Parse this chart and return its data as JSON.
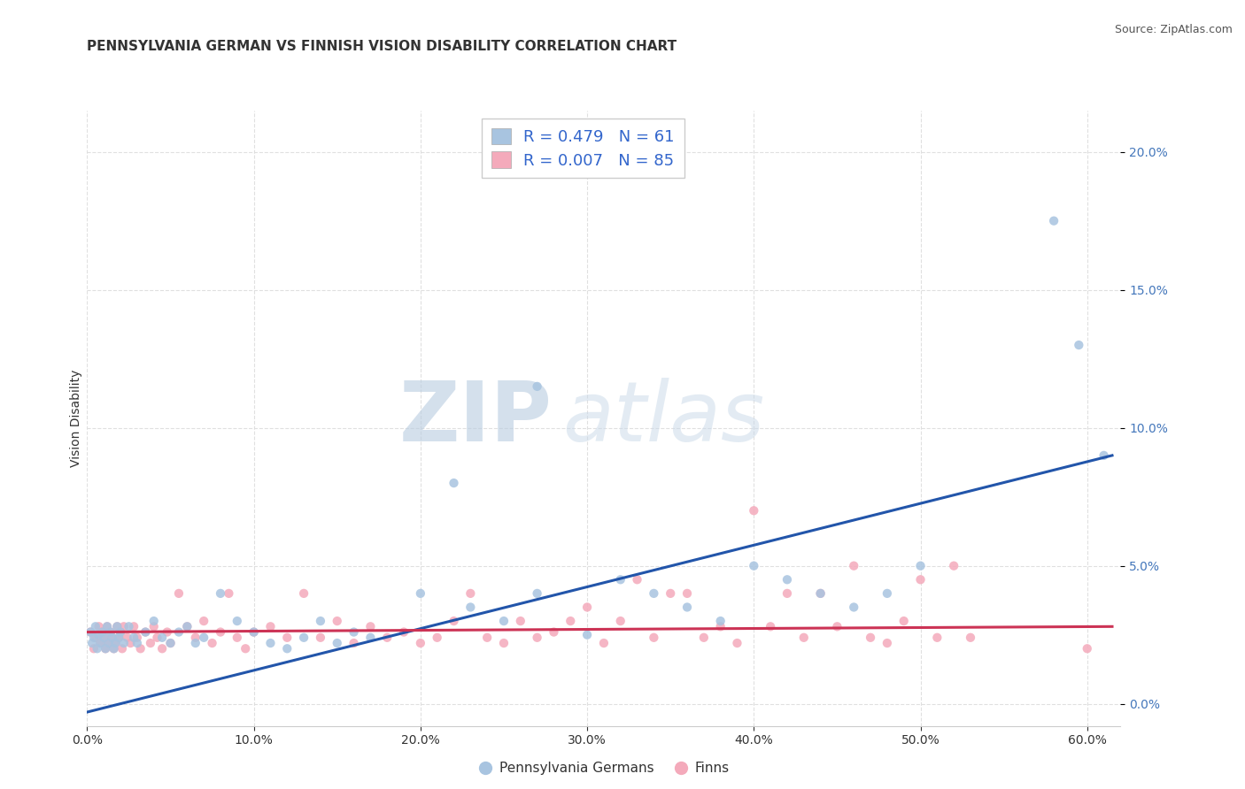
{
  "title": "PENNSYLVANIA GERMAN VS FINNISH VISION DISABILITY CORRELATION CHART",
  "source": "Source: ZipAtlas.com",
  "ylabel": "Vision Disability",
  "xlim": [
    0.0,
    0.62
  ],
  "ylim": [
    -0.008,
    0.215
  ],
  "xticks": [
    0.0,
    0.1,
    0.2,
    0.3,
    0.4,
    0.5,
    0.6
  ],
  "xtick_labels": [
    "0.0%",
    "10.0%",
    "20.0%",
    "30.0%",
    "40.0%",
    "50.0%",
    "60.0%"
  ],
  "yticks": [
    0.0,
    0.05,
    0.1,
    0.15,
    0.2
  ],
  "ytick_labels": [
    "0.0%",
    "5.0%",
    "10.0%",
    "15.0%",
    "20.0%"
  ],
  "legend1_label": "R = 0.479   N = 61",
  "legend2_label": "R = 0.007   N = 85",
  "blue_color": "#A8C4E0",
  "pink_color": "#F4AABB",
  "blue_line_color": "#2255AA",
  "pink_line_color": "#CC3355",
  "watermark_zip": "ZIP",
  "watermark_atlas": "atlas",
  "title_fontsize": 11,
  "label_fontsize": 10,
  "tick_fontsize": 10,
  "blue_scatter": [
    [
      0.002,
      0.026
    ],
    [
      0.003,
      0.022
    ],
    [
      0.004,
      0.024
    ],
    [
      0.005,
      0.028
    ],
    [
      0.006,
      0.02
    ],
    [
      0.007,
      0.025
    ],
    [
      0.008,
      0.022
    ],
    [
      0.009,
      0.026
    ],
    [
      0.01,
      0.024
    ],
    [
      0.011,
      0.02
    ],
    [
      0.012,
      0.028
    ],
    [
      0.013,
      0.022
    ],
    [
      0.014,
      0.026
    ],
    [
      0.015,
      0.024
    ],
    [
      0.016,
      0.02
    ],
    [
      0.017,
      0.022
    ],
    [
      0.018,
      0.028
    ],
    [
      0.019,
      0.024
    ],
    [
      0.02,
      0.026
    ],
    [
      0.022,
      0.022
    ],
    [
      0.025,
      0.028
    ],
    [
      0.028,
      0.024
    ],
    [
      0.03,
      0.022
    ],
    [
      0.035,
      0.026
    ],
    [
      0.04,
      0.03
    ],
    [
      0.045,
      0.024
    ],
    [
      0.05,
      0.022
    ],
    [
      0.055,
      0.026
    ],
    [
      0.06,
      0.028
    ],
    [
      0.065,
      0.022
    ],
    [
      0.07,
      0.024
    ],
    [
      0.08,
      0.04
    ],
    [
      0.09,
      0.03
    ],
    [
      0.1,
      0.026
    ],
    [
      0.11,
      0.022
    ],
    [
      0.12,
      0.02
    ],
    [
      0.13,
      0.024
    ],
    [
      0.14,
      0.03
    ],
    [
      0.15,
      0.022
    ],
    [
      0.16,
      0.026
    ],
    [
      0.17,
      0.024
    ],
    [
      0.2,
      0.04
    ],
    [
      0.22,
      0.08
    ],
    [
      0.23,
      0.035
    ],
    [
      0.25,
      0.03
    ],
    [
      0.27,
      0.04
    ],
    [
      0.3,
      0.025
    ],
    [
      0.32,
      0.045
    ],
    [
      0.34,
      0.04
    ],
    [
      0.36,
      0.035
    ],
    [
      0.38,
      0.03
    ],
    [
      0.4,
      0.05
    ],
    [
      0.42,
      0.045
    ],
    [
      0.44,
      0.04
    ],
    [
      0.46,
      0.035
    ],
    [
      0.48,
      0.04
    ],
    [
      0.5,
      0.05
    ],
    [
      0.58,
      0.175
    ],
    [
      0.595,
      0.13
    ],
    [
      0.61,
      0.09
    ],
    [
      0.27,
      0.115
    ]
  ],
  "pink_scatter": [
    [
      0.002,
      0.026
    ],
    [
      0.004,
      0.02
    ],
    [
      0.005,
      0.024
    ],
    [
      0.007,
      0.028
    ],
    [
      0.008,
      0.022
    ],
    [
      0.009,
      0.026
    ],
    [
      0.01,
      0.024
    ],
    [
      0.011,
      0.02
    ],
    [
      0.012,
      0.028
    ],
    [
      0.013,
      0.022
    ],
    [
      0.014,
      0.026
    ],
    [
      0.015,
      0.024
    ],
    [
      0.016,
      0.02
    ],
    [
      0.017,
      0.022
    ],
    [
      0.018,
      0.028
    ],
    [
      0.019,
      0.024
    ],
    [
      0.02,
      0.026
    ],
    [
      0.021,
      0.02
    ],
    [
      0.022,
      0.028
    ],
    [
      0.024,
      0.024
    ],
    [
      0.026,
      0.022
    ],
    [
      0.028,
      0.028
    ],
    [
      0.03,
      0.024
    ],
    [
      0.032,
      0.02
    ],
    [
      0.035,
      0.026
    ],
    [
      0.038,
      0.022
    ],
    [
      0.04,
      0.028
    ],
    [
      0.042,
      0.024
    ],
    [
      0.045,
      0.02
    ],
    [
      0.048,
      0.026
    ],
    [
      0.05,
      0.022
    ],
    [
      0.055,
      0.04
    ],
    [
      0.06,
      0.028
    ],
    [
      0.065,
      0.024
    ],
    [
      0.07,
      0.03
    ],
    [
      0.075,
      0.022
    ],
    [
      0.08,
      0.026
    ],
    [
      0.085,
      0.04
    ],
    [
      0.09,
      0.024
    ],
    [
      0.095,
      0.02
    ],
    [
      0.1,
      0.026
    ],
    [
      0.11,
      0.028
    ],
    [
      0.12,
      0.024
    ],
    [
      0.13,
      0.04
    ],
    [
      0.14,
      0.024
    ],
    [
      0.15,
      0.03
    ],
    [
      0.16,
      0.022
    ],
    [
      0.17,
      0.028
    ],
    [
      0.18,
      0.024
    ],
    [
      0.19,
      0.026
    ],
    [
      0.2,
      0.022
    ],
    [
      0.21,
      0.024
    ],
    [
      0.22,
      0.03
    ],
    [
      0.23,
      0.04
    ],
    [
      0.24,
      0.024
    ],
    [
      0.25,
      0.022
    ],
    [
      0.26,
      0.03
    ],
    [
      0.27,
      0.024
    ],
    [
      0.28,
      0.026
    ],
    [
      0.29,
      0.03
    ],
    [
      0.3,
      0.035
    ],
    [
      0.31,
      0.022
    ],
    [
      0.32,
      0.03
    ],
    [
      0.33,
      0.045
    ],
    [
      0.34,
      0.024
    ],
    [
      0.35,
      0.04
    ],
    [
      0.36,
      0.04
    ],
    [
      0.37,
      0.024
    ],
    [
      0.38,
      0.028
    ],
    [
      0.39,
      0.022
    ],
    [
      0.4,
      0.07
    ],
    [
      0.41,
      0.028
    ],
    [
      0.42,
      0.04
    ],
    [
      0.43,
      0.024
    ],
    [
      0.44,
      0.04
    ],
    [
      0.45,
      0.028
    ],
    [
      0.46,
      0.05
    ],
    [
      0.47,
      0.024
    ],
    [
      0.48,
      0.022
    ],
    [
      0.49,
      0.03
    ],
    [
      0.5,
      0.045
    ],
    [
      0.51,
      0.024
    ],
    [
      0.52,
      0.05
    ],
    [
      0.53,
      0.024
    ],
    [
      0.6,
      0.02
    ]
  ],
  "blue_line_x": [
    0.0,
    0.615
  ],
  "blue_line_y": [
    -0.003,
    0.09
  ],
  "pink_line_x": [
    0.0,
    0.615
  ],
  "pink_line_y": [
    0.026,
    0.028
  ],
  "background_color": "#FFFFFF",
  "grid_color": "#DDDDDD",
  "legend_bottom_labels": [
    "Pennsylvania Germans",
    "Finns"
  ]
}
